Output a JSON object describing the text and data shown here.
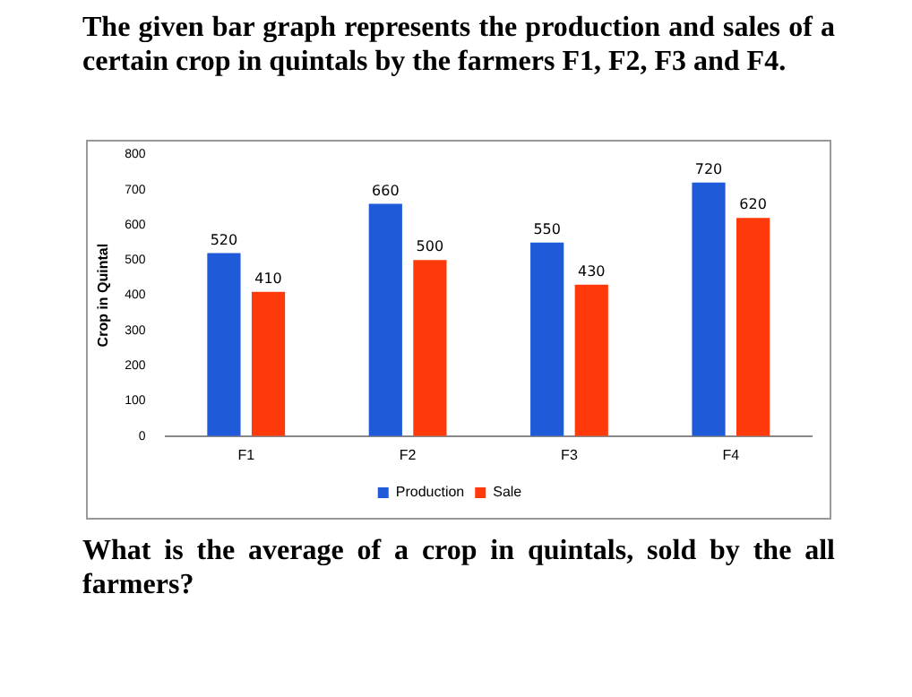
{
  "chart_data": {
    "type": "bar",
    "title": "The given bar graph represents the production and sales of a certain crop in quintals by the farmers F1, F2, F3 and F4.",
    "ylabel": "Crop in Quintal",
    "categories": [
      "F1",
      "F2",
      "F3",
      "F4"
    ],
    "series": [
      {
        "name": "Production",
        "color": "#1f5ad8",
        "values": [
          520,
          660,
          550,
          720
        ]
      },
      {
        "name": "Sale",
        "color": "#ff3a0a",
        "values": [
          410,
          500,
          430,
          620
        ]
      }
    ],
    "ylim": [
      0,
      800
    ],
    "yticks": [
      0,
      100,
      200,
      300,
      400,
      500,
      600,
      700,
      800
    ],
    "grid": false,
    "legend": "bottom",
    "data_labels": true,
    "annotations": [
      "What is the average of a crop in quintals, sold by the all farmers?"
    ]
  }
}
